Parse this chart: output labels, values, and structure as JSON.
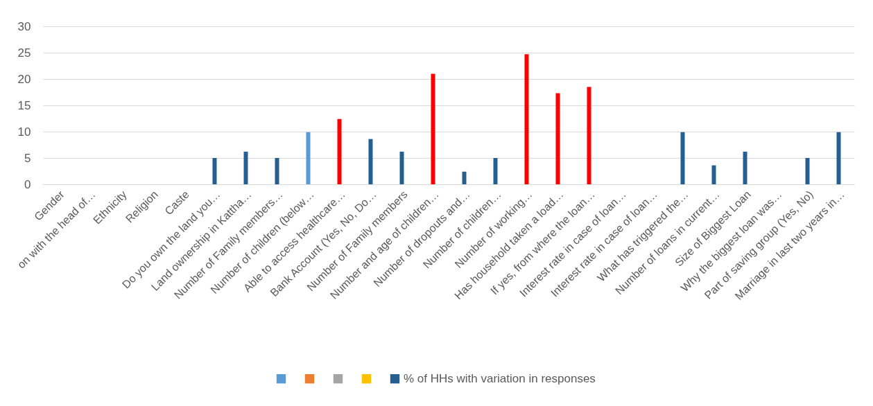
{
  "chart_data": {
    "type": "bar",
    "categories": [
      "Gender",
      "on with the head of…",
      "Ethnicity",
      "Religion",
      "Caste",
      "Do you own the land you…",
      "Land ownership in Kattha…",
      "Number of Family members…",
      "Number of children (below…",
      "Able to access healthcare…",
      "Bank Account (Yes, No, Do…",
      "Number of Family members",
      "Number and age of children…",
      "Number of dropouts and…",
      "Number of children…",
      "Number of working…",
      "Has household taken a load…",
      "If yes, from where the loan…",
      "Interest rate in case of loan…",
      "Interest rate in case of loan…",
      "What has triggered the…",
      "Number of loans in current…",
      "Size of Biggest Loan",
      "Why the biggest loan was…",
      "Part of saving group (Yes, No)",
      "Marriage in last two years in…"
    ],
    "series": [
      {
        "color": "#5b9bd5",
        "values": [
          null,
          null,
          null,
          null,
          null,
          null,
          null,
          null,
          null,
          null,
          null,
          null,
          null,
          null,
          null,
          null,
          null,
          null,
          null,
          null,
          null,
          null,
          null,
          null,
          null,
          null
        ]
      },
      {
        "color": "#ed7d31",
        "values": [
          null,
          null,
          null,
          null,
          null,
          null,
          null,
          null,
          null,
          null,
          null,
          null,
          null,
          null,
          null,
          null,
          null,
          null,
          null,
          null,
          null,
          null,
          null,
          null,
          null,
          null
        ]
      },
      {
        "color": "#a5a5a5",
        "values": [
          null,
          null,
          null,
          null,
          null,
          null,
          null,
          null,
          null,
          null,
          null,
          null,
          null,
          null,
          null,
          null,
          null,
          null,
          null,
          null,
          null,
          null,
          null,
          null,
          null,
          null
        ]
      },
      {
        "color": "#ffc000",
        "values": [
          null,
          null,
          null,
          null,
          null,
          null,
          null,
          null,
          null,
          null,
          null,
          null,
          null,
          null,
          null,
          null,
          null,
          null,
          null,
          null,
          null,
          null,
          null,
          null,
          null,
          null
        ]
      },
      {
        "name": "% of HHs with variation in responses",
        "color": "#255e91",
        "values": [
          0,
          0,
          0,
          0,
          0,
          5,
          6.2,
          5,
          9.9,
          12.4,
          8.6,
          6.2,
          21,
          2.4,
          5,
          24.7,
          17.3,
          18.5,
          0,
          0,
          9.9,
          3.6,
          6.2,
          0,
          5,
          9.9
        ],
        "colors": [
          "#255e91",
          "#255e91",
          "#255e91",
          "#255e91",
          "#255e91",
          "#255e91",
          "#255e91",
          "#255e91",
          "#5b9bd5",
          "#ff0000",
          "#255e91",
          "#255e91",
          "#ff0000",
          "#255e91",
          "#255e91",
          "#ff0000",
          "#ff0000",
          "#ff0000",
          "#255e91",
          "#255e91",
          "#255e91",
          "#255e91",
          "#255e91",
          "#255e91",
          "#255e91",
          "#255e91"
        ]
      }
    ],
    "ylim": [
      0,
      30
    ],
    "yticks": [
      0,
      5,
      10,
      15,
      20,
      25,
      30
    ],
    "grid": "y",
    "legend": "bottom"
  }
}
